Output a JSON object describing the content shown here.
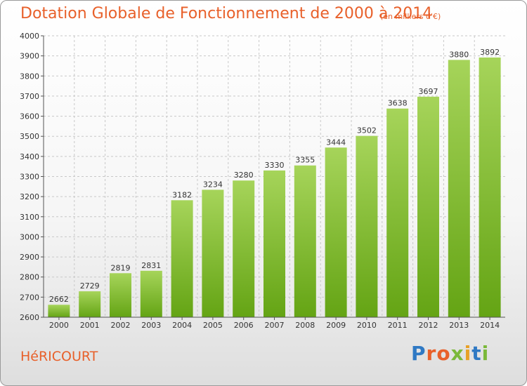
{
  "chart_data": {
    "type": "bar",
    "title": "Dotation Globale de Fonctionnement de 2000 à 2014",
    "subtitle": "(en milliers d'€)",
    "categories": [
      "2000",
      "2001",
      "2002",
      "2003",
      "2004",
      "2005",
      "2006",
      "2007",
      "2008",
      "2009",
      "2010",
      "2011",
      "2012",
      "2013",
      "2014"
    ],
    "values": [
      2662,
      2729,
      2819,
      2831,
      3182,
      3234,
      3280,
      3330,
      3355,
      3444,
      3502,
      3638,
      3697,
      3880,
      3892
    ],
    "ylim": [
      2600,
      4000
    ],
    "yticks": [
      2600,
      2700,
      2800,
      2900,
      3000,
      3100,
      3200,
      3300,
      3400,
      3500,
      3600,
      3700,
      3800,
      3900,
      4000
    ],
    "grid": true,
    "bar_color_top": "#a6d45a",
    "bar_color_bottom": "#64a414"
  },
  "footer": {
    "city": "HéRICOURT"
  },
  "logo": {
    "letters": [
      {
        "char": "P",
        "color": "#2f79c4"
      },
      {
        "char": "r",
        "color": "#e8602a"
      },
      {
        "char": "o",
        "color": "#e8602a"
      },
      {
        "char": "x",
        "color": "#7bb93a"
      },
      {
        "char": "i",
        "color": "#e8a125"
      },
      {
        "char": "t",
        "color": "#2f79c4"
      },
      {
        "char": "i",
        "color": "#7bb93a"
      }
    ]
  },
  "colors": {
    "accent": "#e8602a",
    "grid": "#c8c8c8",
    "axis": "#555555"
  }
}
